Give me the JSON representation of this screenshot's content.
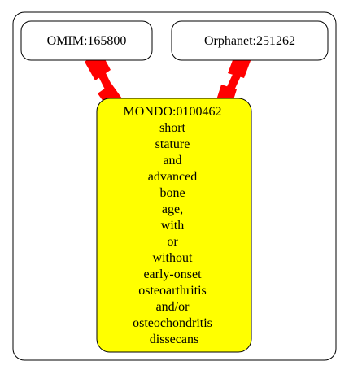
{
  "graph": {
    "nodes": [
      {
        "id": "omim",
        "label": "OMIM:165800",
        "fill": "#ffffff"
      },
      {
        "id": "orphanet",
        "label": "Orphanet:251262",
        "fill": "#ffffff"
      },
      {
        "id": "mondo",
        "fill": "#ffff00",
        "label_lines": [
          "MONDO:0100462",
          "short",
          "stature",
          "and",
          "advanced",
          "bone",
          "age,",
          "with",
          "or",
          "without",
          "early-onset",
          "osteoarthritis",
          "and/or",
          "osteochondritis",
          "dissecans"
        ]
      }
    ],
    "edges": [
      {
        "from": "omim",
        "to": "mondo",
        "color": "#ff0000"
      },
      {
        "from": "orphanet",
        "to": "mondo",
        "color": "#ff0000"
      }
    ]
  }
}
